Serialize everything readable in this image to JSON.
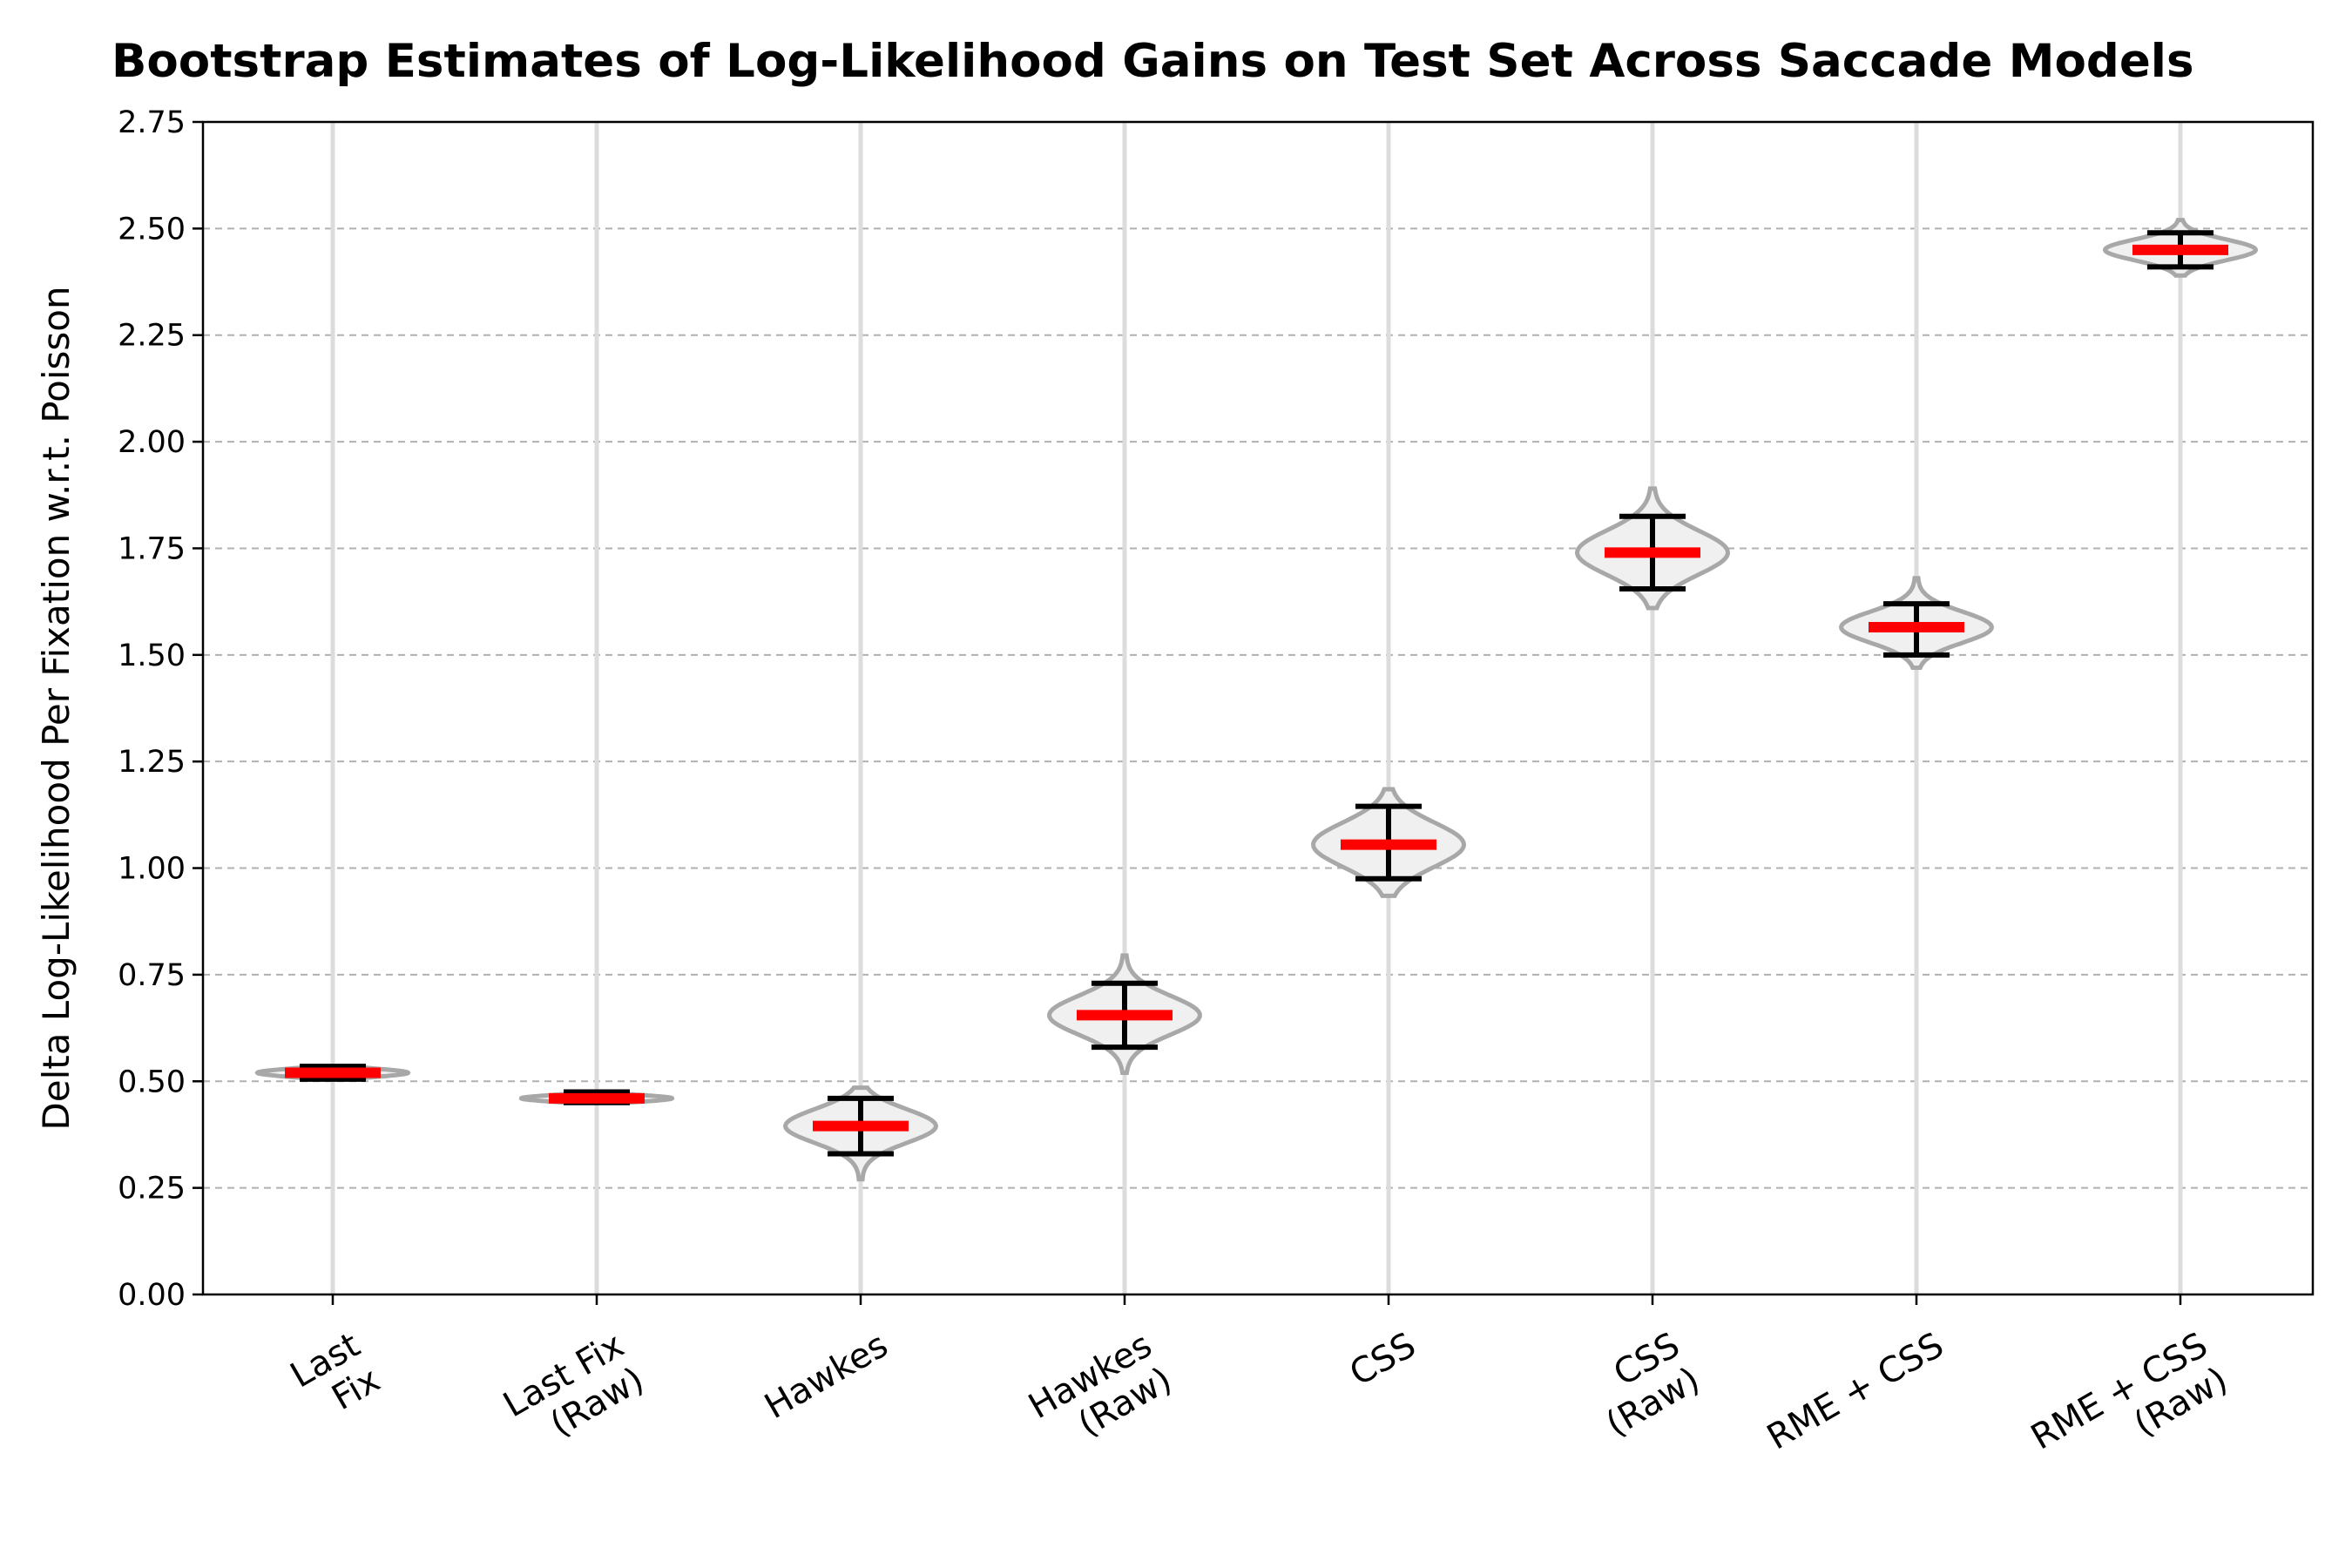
{
  "chart_data": {
    "type": "violin",
    "title": "Bootstrap Estimates of Log-Likelihood Gains on Test Set Across Saccade Models",
    "xlabel": "",
    "ylabel": "Delta Log-Likelihood Per Fixation w.r.t. Poisson",
    "ylim": [
      0,
      2.75
    ],
    "yticks": [
      "0.00",
      "0.25",
      "0.50",
      "0.75",
      "1.00",
      "1.25",
      "1.50",
      "1.75",
      "2.00",
      "2.25",
      "2.50",
      "2.75"
    ],
    "ytick_values": [
      0,
      0.25,
      0.5,
      0.75,
      1.0,
      1.25,
      1.5,
      1.75,
      2.0,
      2.25,
      2.5,
      2.75
    ],
    "grid": "horizontal dashed",
    "categories": [
      [
        "Last",
        "Fix"
      ],
      [
        "Last Fix",
        "(Raw)"
      ],
      [
        "Hawkes"
      ],
      [
        "Hawkes",
        "(Raw)"
      ],
      [
        "CSS"
      ],
      [
        "CSS",
        "(Raw)"
      ],
      [
        "RME + CSS"
      ],
      [
        "RME + CSS",
        "(Raw)"
      ]
    ],
    "median": [
      0.52,
      0.46,
      0.395,
      0.655,
      1.055,
      1.74,
      1.565,
      2.45
    ],
    "lower": [
      0.505,
      0.45,
      0.33,
      0.58,
      0.975,
      1.655,
      1.5,
      2.41
    ],
    "upper": [
      0.535,
      0.475,
      0.46,
      0.73,
      1.145,
      1.825,
      1.62,
      2.49
    ],
    "dist_min": [
      0.505,
      0.45,
      0.27,
      0.52,
      0.935,
      1.61,
      1.47,
      2.39
    ],
    "dist_max": [
      0.535,
      0.475,
      0.485,
      0.795,
      1.185,
      1.89,
      1.68,
      2.52
    ],
    "colors": {
      "median": "#ff0000",
      "violin_fill": "#f0f0f0",
      "violin_edge": "#a8a8a8",
      "error_bar": "#000000",
      "grid": "#b0b0b0"
    }
  }
}
